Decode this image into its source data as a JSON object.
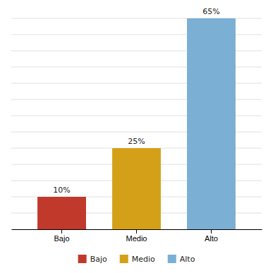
{
  "chart_data": {
    "type": "bar",
    "categories": [
      "Bajo",
      "Medio",
      "Alto"
    ],
    "values": [
      10,
      25,
      65
    ],
    "value_labels": [
      "10%",
      "25%",
      "65%"
    ],
    "data_labels": true,
    "colors": [
      "#c0392b",
      "#d4a017",
      "#7bafd4"
    ],
    "ylim": [
      0,
      65
    ],
    "yticks": [
      0,
      5,
      10,
      15,
      20,
      25,
      30,
      35,
      40,
      45,
      50,
      55,
      60,
      65
    ],
    "grid": true,
    "tick_labels": "x",
    "legend": "bottom"
  }
}
